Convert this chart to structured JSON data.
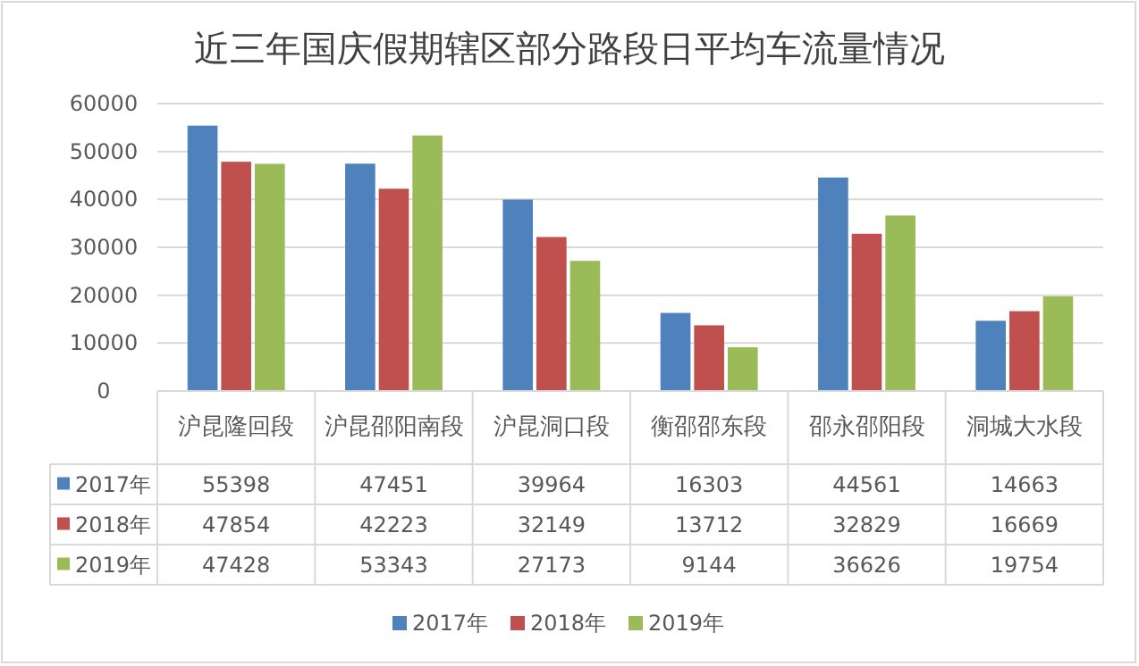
{
  "chart_data": {
    "type": "bar",
    "title": "近三年国庆假期辖区部分路段日平均车流量情况",
    "categories": [
      "沪昆隆回段",
      "沪昆邵阳南段",
      "沪昆洞口段",
      "衡邵邵东段",
      "邵永邵阳段",
      "洞城大水段"
    ],
    "series": [
      {
        "name": "2017年",
        "color": "#4f81bd",
        "values": [
          55398,
          47451,
          39964,
          16303,
          44561,
          14663
        ]
      },
      {
        "name": "2018年",
        "color": "#c0504d",
        "values": [
          47854,
          42223,
          32149,
          13712,
          32829,
          16669
        ]
      },
      {
        "name": "2019年",
        "color": "#9bbb59",
        "values": [
          47428,
          53343,
          27173,
          9144,
          36626,
          19754
        ]
      }
    ],
    "ylim": [
      0,
      60000
    ],
    "yticks": [
      0,
      10000,
      20000,
      30000,
      40000,
      50000,
      60000
    ],
    "grid": "y",
    "legend": "bottom",
    "data_labels": true
  }
}
